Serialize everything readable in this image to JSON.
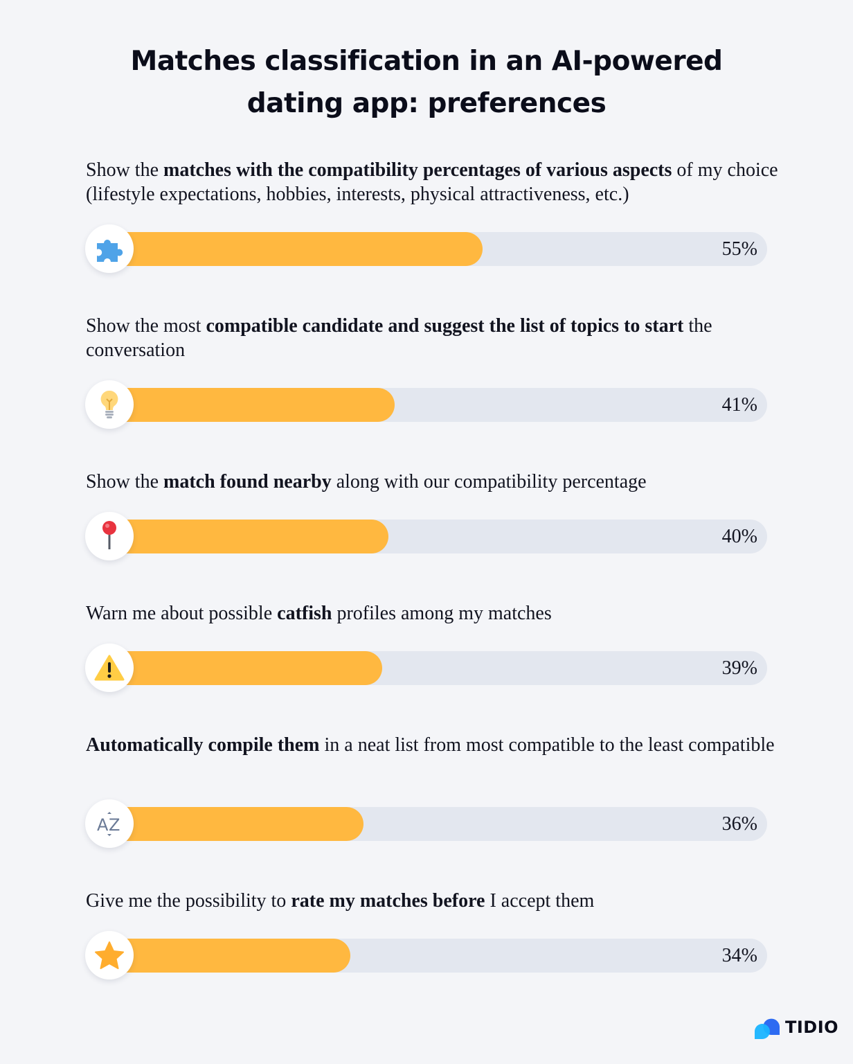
{
  "chart_data": {
    "type": "bar",
    "orientation": "horizontal",
    "title": "Matches classification in an AI-powered dating app: preferences",
    "title_lines": [
      "Matches classification in an AI-powered",
      "dating app: preferences"
    ],
    "value_suffix": "%",
    "xlim": [
      0,
      100
    ],
    "colors": {
      "fill": "#ffb840",
      "track": "#e3e7ef",
      "background": "#f4f5f8"
    },
    "items": [
      {
        "icon": "puzzle-icon",
        "value": 55,
        "label_text": "55%",
        "segments": [
          {
            "text": "Show the ",
            "bold": false
          },
          {
            "text": "matches with the compatibility percentages of various aspects",
            "bold": true
          },
          {
            "text": " of my choice (lifestyle expectations, hobbies, interests, physical attractiveness, etc.)",
            "bold": false
          }
        ]
      },
      {
        "icon": "lightbulb-icon",
        "value": 41,
        "label_text": "41%",
        "segments": [
          {
            "text": "Show the most ",
            "bold": false
          },
          {
            "text": "compatible candidate and suggest the list of topics to start",
            "bold": true
          },
          {
            "text": " the conversation",
            "bold": false
          }
        ]
      },
      {
        "icon": "pin-icon",
        "value": 40,
        "label_text": "40%",
        "segments": [
          {
            "text": "Show the ",
            "bold": false
          },
          {
            "text": "match found nearby",
            "bold": true
          },
          {
            "text": " along with our compatibility percentage",
            "bold": false
          }
        ]
      },
      {
        "icon": "warning-icon",
        "value": 39,
        "label_text": "39%",
        "segments": [
          {
            "text": "Warn me about possible ",
            "bold": false
          },
          {
            "text": "catfish",
            "bold": true
          },
          {
            "text": " profiles among my matches",
            "bold": false
          }
        ]
      },
      {
        "icon": "sort-az-icon",
        "value": 36,
        "label_text": "36%",
        "segments": [
          {
            "text": "Automatically compile them",
            "bold": true
          },
          {
            "text": " in a neat list from most compatible to the least compatible",
            "bold": false
          }
        ]
      },
      {
        "icon": "star-icon",
        "value": 34,
        "label_text": "34%",
        "segments": [
          {
            "text": "Give me the possibility to ",
            "bold": false
          },
          {
            "text": "rate my matches before",
            "bold": true
          },
          {
            "text": " I accept them",
            "bold": false
          }
        ]
      }
    ]
  },
  "brand": {
    "logo_text": "TIDIO",
    "colors": [
      "#1a8cff",
      "#2d6bf2"
    ]
  }
}
